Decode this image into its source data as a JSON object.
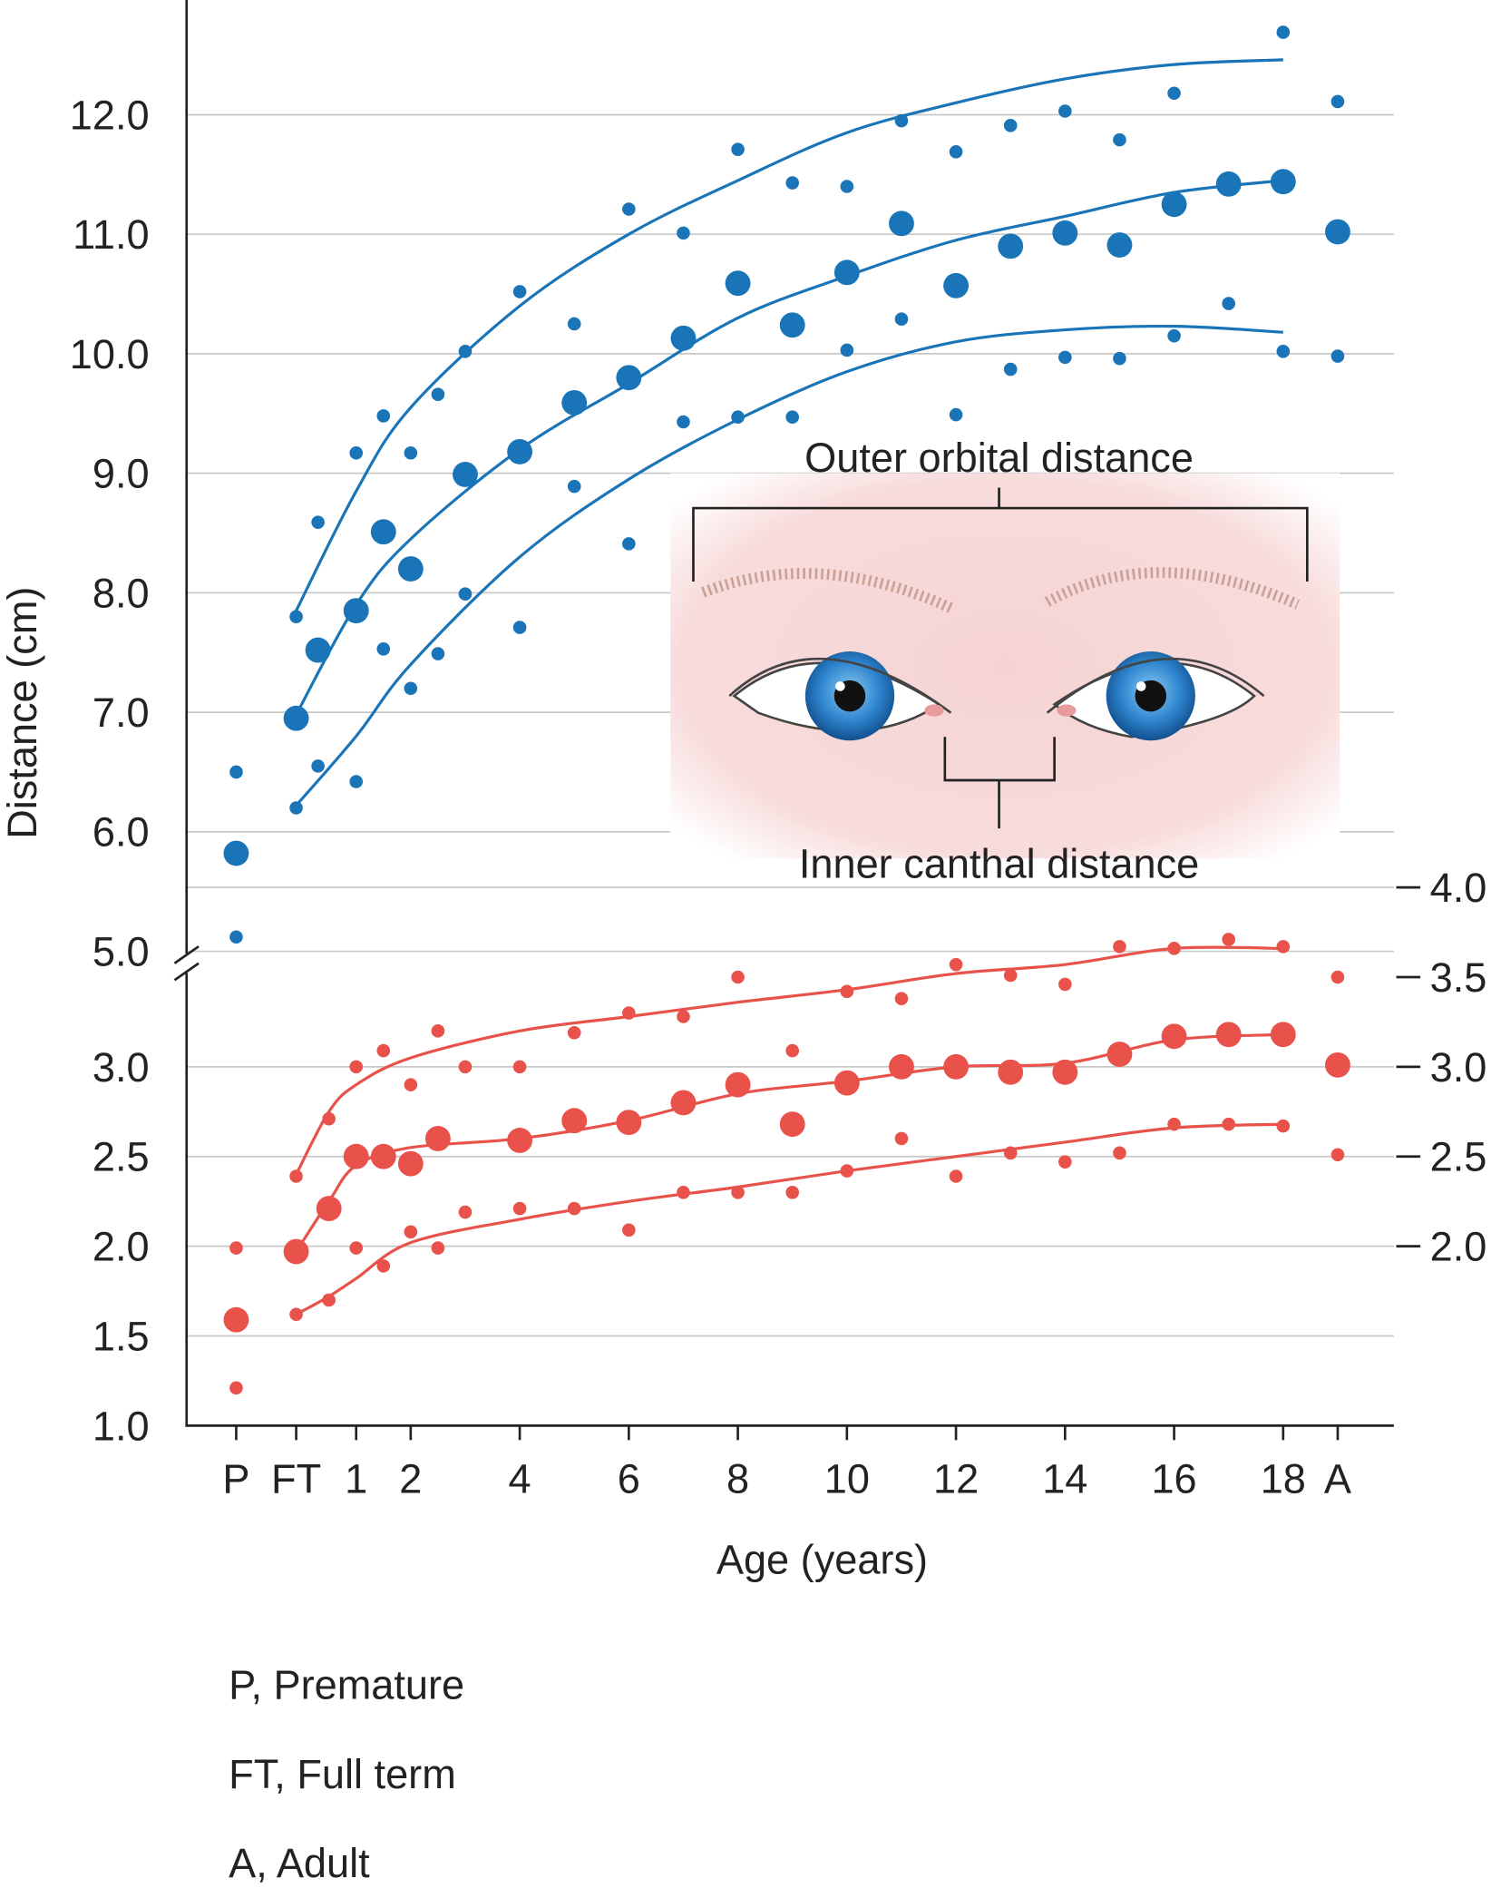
{
  "chart_data": [
    {
      "type": "scatter",
      "ylabel": "Distance (cm)",
      "annotations": [
        "Outer orbital distance",
        "Inner canthal distance"
      ],
      "xlim": [
        -2.11,
        20.03
      ],
      "ylim": [
        4.9,
        12.96
      ],
      "yticks": [
        {
          "value": 5,
          "label": "5.0"
        },
        {
          "value": 6,
          "label": "6.0"
        },
        {
          "value": 7,
          "label": "7.0"
        },
        {
          "value": 8,
          "label": "8.0"
        },
        {
          "value": 9,
          "label": "9.0"
        },
        {
          "value": 10,
          "label": "10.0"
        },
        {
          "value": 11,
          "label": "11.0"
        },
        {
          "value": 12,
          "label": "12.0"
        }
      ],
      "grid": true,
      "series": [
        {
          "type": "line",
          "color": "#1a75b8",
          "x": [
            -0.1,
            1,
            2,
            4,
            6,
            8,
            10,
            12,
            14,
            16,
            18
          ],
          "values": [
            7.85,
            8.85,
            9.55,
            10.4,
            11.0,
            11.45,
            11.85,
            12.1,
            12.3,
            12.42,
            12.46
          ]
        },
        {
          "type": "line",
          "color": "#1a75b8",
          "x": [
            -0.1,
            1,
            2,
            4,
            6,
            8,
            10,
            12,
            14,
            16,
            18
          ],
          "values": [
            6.98,
            7.9,
            8.45,
            9.2,
            9.75,
            10.3,
            10.65,
            10.95,
            11.15,
            11.35,
            11.45
          ]
        },
        {
          "type": "line",
          "color": "#1a75b8",
          "x": [
            -0.1,
            1,
            2,
            4,
            6,
            8,
            10,
            12,
            14,
            16,
            18
          ],
          "values": [
            6.22,
            6.8,
            7.4,
            8.3,
            8.95,
            9.45,
            9.85,
            10.1,
            10.2,
            10.23,
            10.18
          ]
        },
        {
          "type": "scatter",
          "marker": "small",
          "color": "#1a75b8",
          "x": [
            -1.2,
            -0.1,
            0.3,
            1,
            1.5,
            2,
            2.5,
            3,
            4,
            5,
            6,
            7,
            8,
            9,
            10,
            11,
            12,
            13,
            14,
            15,
            16,
            18,
            19
          ],
          "values": [
            6.5,
            7.8,
            8.59,
            9.17,
            9.48,
            9.17,
            9.66,
            10.02,
            10.52,
            10.25,
            11.21,
            11.01,
            11.71,
            11.43,
            11.4,
            11.95,
            11.69,
            11.91,
            12.03,
            11.79,
            12.18,
            12.69,
            12.11
          ]
        },
        {
          "type": "scatter",
          "marker": "large",
          "color": "#1a75b8",
          "x": [
            -1.2,
            -0.1,
            0.3,
            1,
            1.5,
            2,
            3,
            4,
            5,
            6,
            7,
            8,
            9,
            10,
            11,
            12,
            13,
            14,
            15,
            16,
            17,
            18,
            19
          ],
          "values": [
            5.82,
            6.95,
            7.52,
            7.85,
            8.51,
            8.2,
            8.99,
            9.18,
            9.59,
            9.8,
            10.13,
            10.59,
            10.24,
            10.68,
            11.09,
            10.57,
            10.9,
            11.01,
            10.91,
            11.25,
            11.42,
            11.44,
            11.02
          ]
        },
        {
          "type": "scatter",
          "marker": "small",
          "color": "#1a75b8",
          "x": [
            -1.2,
            -0.1,
            0.3,
            1,
            1.5,
            2,
            2.5,
            3,
            4,
            5,
            6,
            7,
            8,
            9,
            10,
            11,
            12,
            13,
            14,
            15,
            16,
            17,
            18,
            19
          ],
          "values": [
            5.12,
            6.2,
            6.55,
            6.42,
            7.53,
            7.2,
            7.49,
            7.99,
            7.71,
            8.89,
            8.41,
            9.43,
            9.47,
            9.47,
            10.03,
            10.29,
            9.49,
            9.87,
            9.97,
            9.96,
            10.15,
            10.42,
            10.02,
            9.98
          ]
        }
      ]
    },
    {
      "type": "scatter",
      "xlabel": "Age (years)",
      "xlim": [
        -2.11,
        20.03
      ],
      "xticks": [
        {
          "value": -1.2,
          "label": "P"
        },
        {
          "value": -0.1,
          "label": "FT"
        },
        1,
        2,
        4,
        6,
        8,
        10,
        12,
        14,
        16,
        18,
        {
          "value": 19,
          "label": "A"
        }
      ],
      "ylim": [
        1.0,
        3.95
      ],
      "yticks": [
        {
          "value": 1,
          "label": "1.0"
        },
        1.5,
        {
          "value": 2,
          "label": "2.0"
        },
        2.5,
        {
          "value": 3,
          "label": "3.0"
        }
      ],
      "y2lim": [
        1.0,
        3.95
      ],
      "y2ticks": [
        {
          "value": 2,
          "label": "2.0"
        },
        2.5,
        {
          "value": 3,
          "label": "3.0"
        },
        3.5,
        {
          "value": 4,
          "label": "4.0"
        }
      ],
      "grid": true,
      "series": [
        {
          "type": "line",
          "color": "#e8524a",
          "x": [
            -0.1,
            0.5,
            1,
            2,
            4,
            6,
            8,
            10,
            12,
            14,
            16,
            18
          ],
          "values": [
            2.4,
            2.75,
            2.9,
            3.05,
            3.2,
            3.28,
            3.36,
            3.43,
            3.52,
            3.57,
            3.66,
            3.66
          ]
        },
        {
          "type": "line",
          "color": "#e8524a",
          "x": [
            -0.1,
            0.5,
            1,
            2,
            4,
            6,
            8,
            10,
            12,
            14,
            16,
            18
          ],
          "values": [
            1.97,
            2.25,
            2.45,
            2.55,
            2.6,
            2.7,
            2.85,
            2.92,
            3.0,
            3.02,
            3.15,
            3.18
          ]
        },
        {
          "type": "line",
          "color": "#e8524a",
          "x": [
            -0.1,
            0.5,
            1,
            2,
            4,
            6,
            8,
            10,
            12,
            14,
            16,
            18
          ],
          "values": [
            1.62,
            1.72,
            1.82,
            2.02,
            2.15,
            2.25,
            2.33,
            2.42,
            2.5,
            2.58,
            2.66,
            2.68
          ]
        },
        {
          "type": "scatter",
          "marker": "small",
          "color": "#e8524a",
          "x": [
            -1.2,
            -0.1,
            0.5,
            1,
            1.5,
            2,
            2.5,
            3,
            4,
            5,
            6,
            7,
            8,
            9,
            10,
            11,
            12,
            13,
            14,
            15,
            16,
            17,
            18,
            19
          ],
          "values": [
            1.99,
            2.39,
            2.71,
            3.0,
            3.09,
            2.9,
            3.2,
            3.0,
            3.0,
            3.19,
            3.3,
            3.28,
            3.5,
            3.09,
            3.42,
            3.38,
            3.57,
            3.51,
            3.46,
            3.67,
            3.66,
            3.71,
            3.67,
            3.5
          ]
        },
        {
          "type": "scatter",
          "marker": "large",
          "color": "#e8524a",
          "x": [
            -1.2,
            -0.1,
            0.5,
            1,
            1.5,
            2,
            2.5,
            4,
            5,
            6,
            7,
            8,
            9,
            10,
            11,
            12,
            13,
            14,
            15,
            16,
            17,
            18,
            19
          ],
          "values": [
            1.59,
            1.97,
            2.21,
            2.5,
            2.5,
            2.46,
            2.6,
            2.59,
            2.7,
            2.69,
            2.8,
            2.9,
            2.68,
            2.91,
            3.0,
            3.0,
            2.97,
            2.97,
            3.07,
            3.17,
            3.18,
            3.18,
            3.01
          ]
        },
        {
          "type": "scatter",
          "marker": "small",
          "color": "#e8524a",
          "x": [
            -1.2,
            -0.1,
            0.5,
            1,
            1.5,
            2,
            2.5,
            3,
            4,
            5,
            6,
            7,
            8,
            9,
            10,
            11,
            12,
            13,
            14,
            15,
            16,
            17,
            18,
            19
          ],
          "values": [
            1.21,
            1.62,
            1.7,
            1.99,
            1.89,
            2.08,
            1.99,
            2.19,
            2.21,
            2.21,
            2.09,
            2.3,
            2.3,
            2.3,
            2.42,
            2.6,
            2.39,
            2.52,
            2.47,
            2.52,
            2.68,
            2.68,
            2.67,
            2.51
          ]
        }
      ]
    }
  ],
  "notes": [
    "P, Premature",
    "FT, Full term",
    "A, Adult"
  ]
}
